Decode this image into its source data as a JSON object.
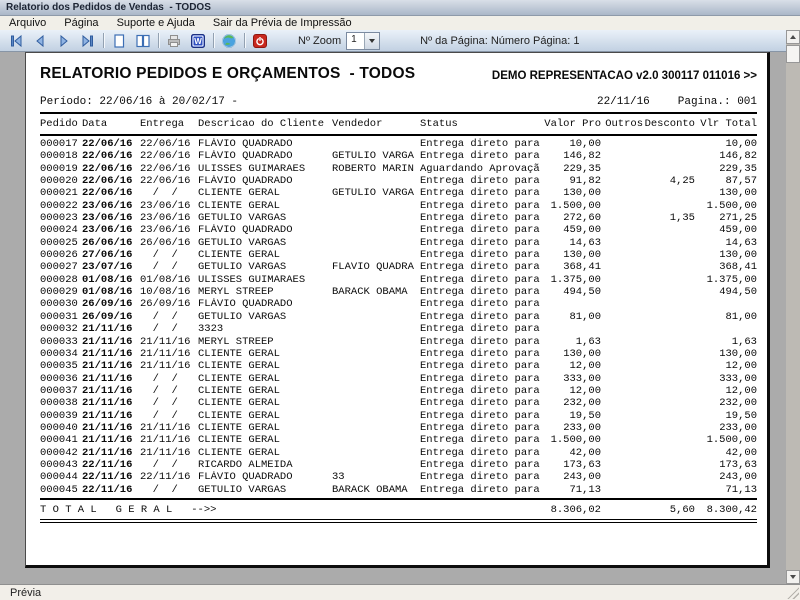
{
  "window": {
    "title": "Relatorio dos Pedidos de Vendas  - TODOS"
  },
  "menu_bar": {
    "items": [
      {
        "label": "Arquivo"
      },
      {
        "label": "Página"
      },
      {
        "label": "Suporte e Ajuda"
      },
      {
        "label": "Sair da Prévia de Impressão"
      }
    ]
  },
  "toolbar": {
    "zoom_label": "Nº Zoom",
    "zoom_value": "1",
    "page_info": "Nº da Página: Número Página: 1",
    "icons": [
      "first-page",
      "previous-page",
      "next-page",
      "last-page",
      "single-page-view",
      "two-page-view",
      "print",
      "export-word",
      "web-export",
      "close-preview"
    ]
  },
  "report": {
    "title": "RELATORIO PEDIDOS E ORÇAMENTOS  - TODOS",
    "company": "DEMO REPRESENTACAO v2.0 300117 011016 >>",
    "periodo": "Período: 22/06/16 à 20/02/17 -",
    "emission_date": "22/11/16",
    "page_number": "Pagina.: 001",
    "columns": [
      "Pedido",
      "Data",
      "Entrega",
      "Descricao do Cliente",
      "Vendedor",
      "Status",
      "Valor Pro",
      "Outros",
      "Desconto",
      "Vlr Total"
    ],
    "rows": [
      [
        "000017",
        "22/06/16",
        "22/06/16",
        "FLÁVIO QUADRADO",
        "",
        "Entrega direto para",
        "10,00",
        "",
        "",
        "10,00"
      ],
      [
        "000018",
        "22/06/16",
        "22/06/16",
        "FLÁVIO QUADRADO",
        "GETULIO VARGA",
        "Entrega direto para",
        "146,82",
        "",
        "",
        "146,82"
      ],
      [
        "000019",
        "22/06/16",
        "22/06/16",
        "ULISSES GUIMARAES",
        "ROBERTO MARIN",
        "Aguardando Aprovaçã",
        "229,35",
        "",
        "",
        "229,35"
      ],
      [
        "000020",
        "22/06/16",
        "22/06/16",
        "FLÁVIO QUADRADO",
        "",
        "Entrega direto para",
        "91,82",
        "",
        "4,25",
        "87,57"
      ],
      [
        "000021",
        "22/06/16",
        "  /  /",
        "CLIENTE GERAL",
        "GETULIO VARGA",
        "Entrega direto para",
        "130,00",
        "",
        "",
        "130,00"
      ],
      [
        "000022",
        "23/06/16",
        "23/06/16",
        "CLIENTE GERAL",
        "",
        "Entrega direto para",
        "1.500,00",
        "",
        "",
        "1.500,00"
      ],
      [
        "000023",
        "23/06/16",
        "23/06/16",
        "GETULIO VARGAS",
        "",
        "Entrega direto para",
        "272,60",
        "",
        "1,35",
        "271,25"
      ],
      [
        "000024",
        "23/06/16",
        "23/06/16",
        "FLÁVIO QUADRADO",
        "",
        "Entrega direto para",
        "459,00",
        "",
        "",
        "459,00"
      ],
      [
        "000025",
        "26/06/16",
        "26/06/16",
        "GETULIO VARGAS",
        "",
        "Entrega direto para",
        "14,63",
        "",
        "",
        "14,63"
      ],
      [
        "000026",
        "27/06/16",
        "  /  /",
        "CLIENTE GERAL",
        "",
        "Entrega direto para",
        "130,00",
        "",
        "",
        "130,00"
      ],
      [
        "000027",
        "23/07/16",
        "  /  /",
        "GETULIO VARGAS",
        "FLAVIO QUADRA",
        "Entrega direto para",
        "368,41",
        "",
        "",
        "368,41"
      ],
      [
        "000028",
        "01/08/16",
        "01/08/16",
        "ULISSES GUIMARAES",
        "",
        "Entrega direto para",
        "1.375,00",
        "",
        "",
        "1.375,00"
      ],
      [
        "000029",
        "01/08/16",
        "10/08/16",
        "MERYL STREEP",
        "BARACK OBAMA",
        "Entrega direto para",
        "494,50",
        "",
        "",
        "494,50"
      ],
      [
        "000030",
        "26/09/16",
        "26/09/16",
        "FLÁVIO QUADRADO",
        "",
        "Entrega direto para",
        "",
        "",
        "",
        ""
      ],
      [
        "000031",
        "26/09/16",
        "  /  /",
        "GETULIO VARGAS",
        "",
        "Entrega direto para",
        "81,00",
        "",
        "",
        "81,00"
      ],
      [
        "000032",
        "21/11/16",
        "  /  /",
        "3323",
        "",
        "Entrega direto para",
        "",
        "",
        "",
        ""
      ],
      [
        "000033",
        "21/11/16",
        "21/11/16",
        "MERYL STREEP",
        "",
        "Entrega direto para",
        "1,63",
        "",
        "",
        "1,63"
      ],
      [
        "000034",
        "21/11/16",
        "21/11/16",
        "CLIENTE GERAL",
        "",
        "Entrega direto para",
        "130,00",
        "",
        "",
        "130,00"
      ],
      [
        "000035",
        "21/11/16",
        "21/11/16",
        "CLIENTE GERAL",
        "",
        "Entrega direto para",
        "12,00",
        "",
        "",
        "12,00"
      ],
      [
        "000036",
        "21/11/16",
        "  /  /",
        "CLIENTE GERAL",
        "",
        "Entrega direto para",
        "333,00",
        "",
        "",
        "333,00"
      ],
      [
        "000037",
        "21/11/16",
        "  /  /",
        "CLIENTE GERAL",
        "",
        "Entrega direto para",
        "12,00",
        "",
        "",
        "12,00"
      ],
      [
        "000038",
        "21/11/16",
        "  /  /",
        "CLIENTE GERAL",
        "",
        "Entrega direto para",
        "232,00",
        "",
        "",
        "232,00"
      ],
      [
        "000039",
        "21/11/16",
        "  /  /",
        "CLIENTE GERAL",
        "",
        "Entrega direto para",
        "19,50",
        "",
        "",
        "19,50"
      ],
      [
        "000040",
        "21/11/16",
        "21/11/16",
        "CLIENTE GERAL",
        "",
        "Entrega direto para",
        "233,00",
        "",
        "",
        "233,00"
      ],
      [
        "000041",
        "21/11/16",
        "21/11/16",
        "CLIENTE GERAL",
        "",
        "Entrega direto para",
        "1.500,00",
        "",
        "",
        "1.500,00"
      ],
      [
        "000042",
        "21/11/16",
        "21/11/16",
        "CLIENTE GERAL",
        "",
        "Entrega direto para",
        "42,00",
        "",
        "",
        "42,00"
      ],
      [
        "000043",
        "22/11/16",
        "  /  /",
        "RICARDO ALMEIDA",
        "",
        "Entrega direto para",
        "173,63",
        "",
        "",
        "173,63"
      ],
      [
        "000044",
        "22/11/16",
        "22/11/16",
        "FLÁVIO QUADRADO",
        "33",
        "Entrega direto para",
        "243,00",
        "",
        "",
        "243,00"
      ],
      [
        "000045",
        "22/11/16",
        "  /  /",
        "GETULIO VARGAS",
        "BARACK OBAMA",
        "Entrega direto para",
        "71,13",
        "",
        "",
        "71,13"
      ]
    ],
    "total": {
      "label": "T O T A L   G E R A L   -->>",
      "valor_pro": "8.306,02",
      "outros": "",
      "desconto": "5,60",
      "vlr_total": "8.300,42"
    }
  },
  "status_bar": {
    "text": "Prévia"
  }
}
